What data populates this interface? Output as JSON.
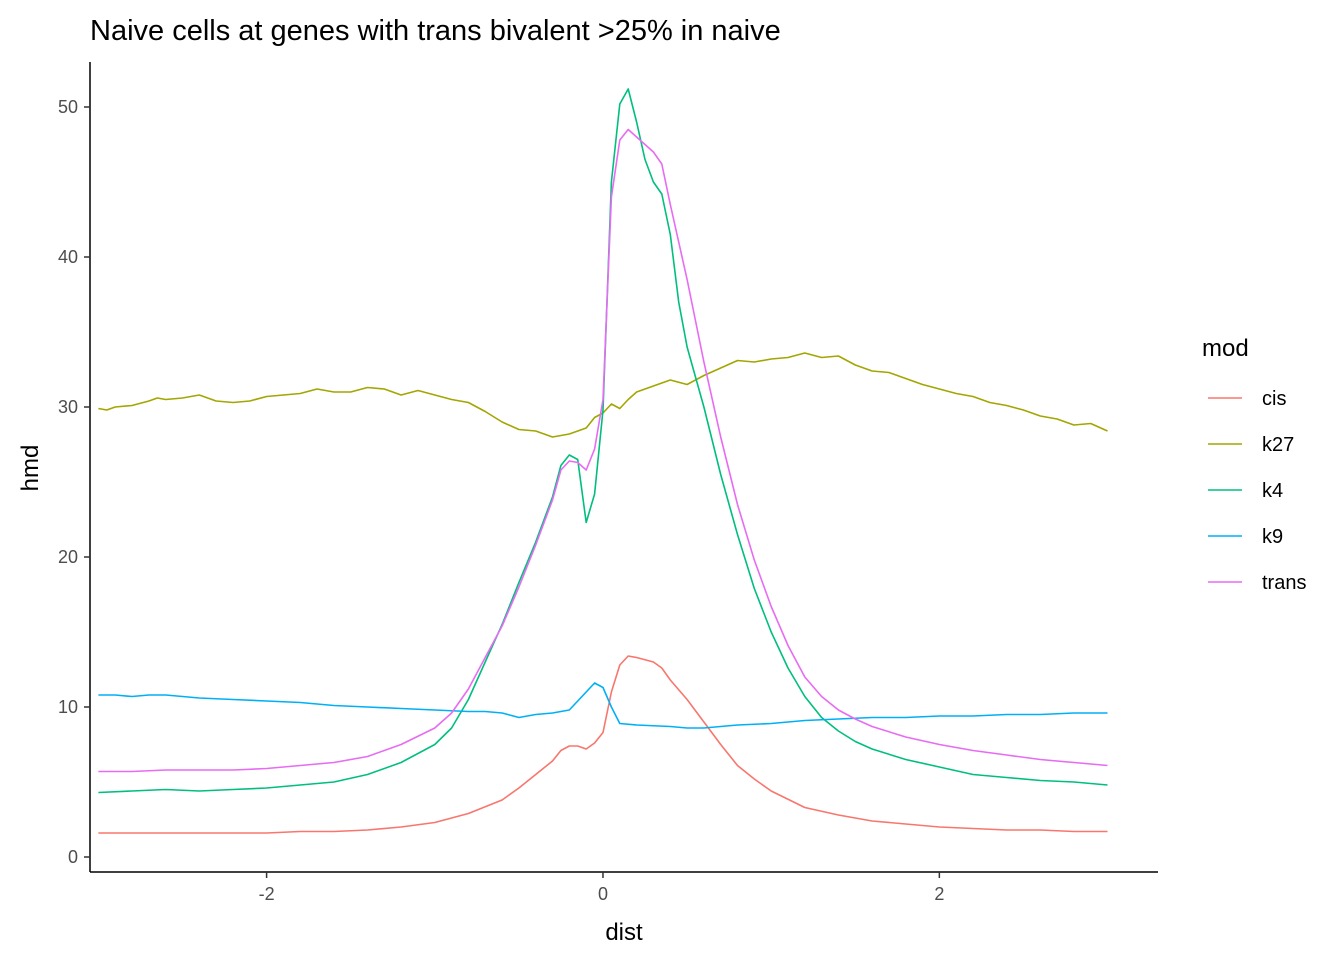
{
  "chart_data": {
    "type": "line",
    "title": "Naive cells at genes with trans bivalent >25% in naive",
    "xlabel": "dist",
    "ylabel": "hmd",
    "xlim": [
      -3.05,
      3.3
    ],
    "ylim": [
      -1,
      53
    ],
    "xticks": [
      -2,
      0,
      2
    ],
    "xtick_labels": [
      "-2",
      "0",
      "2"
    ],
    "yticks": [
      0,
      10,
      20,
      30,
      40,
      50
    ],
    "ytick_labels": [
      "0",
      "10",
      "20",
      "30",
      "40",
      "50"
    ],
    "grid": false,
    "legend": {
      "title": "mod",
      "placement": "right"
    },
    "series": [
      {
        "name": "cis",
        "color": "#F8766D",
        "points": [
          [
            -3.0,
            1.6
          ],
          [
            -2.8,
            1.6
          ],
          [
            -2.6,
            1.6
          ],
          [
            -2.4,
            1.6
          ],
          [
            -2.2,
            1.6
          ],
          [
            -2.0,
            1.6
          ],
          [
            -1.8,
            1.7
          ],
          [
            -1.6,
            1.7
          ],
          [
            -1.4,
            1.8
          ],
          [
            -1.2,
            2.0
          ],
          [
            -1.0,
            2.3
          ],
          [
            -0.8,
            2.9
          ],
          [
            -0.6,
            3.8
          ],
          [
            -0.5,
            4.6
          ],
          [
            -0.4,
            5.5
          ],
          [
            -0.3,
            6.4
          ],
          [
            -0.25,
            7.1
          ],
          [
            -0.2,
            7.4
          ],
          [
            -0.15,
            7.4
          ],
          [
            -0.1,
            7.2
          ],
          [
            -0.05,
            7.6
          ],
          [
            0.0,
            8.3
          ],
          [
            0.05,
            11.0
          ],
          [
            0.1,
            12.8
          ],
          [
            0.15,
            13.4
          ],
          [
            0.2,
            13.3
          ],
          [
            0.3,
            13.0
          ],
          [
            0.35,
            12.6
          ],
          [
            0.4,
            11.8
          ],
          [
            0.5,
            10.5
          ],
          [
            0.6,
            9.0
          ],
          [
            0.7,
            7.5
          ],
          [
            0.8,
            6.1
          ],
          [
            0.9,
            5.2
          ],
          [
            1.0,
            4.4
          ],
          [
            1.2,
            3.3
          ],
          [
            1.4,
            2.8
          ],
          [
            1.6,
            2.4
          ],
          [
            1.8,
            2.2
          ],
          [
            2.0,
            2.0
          ],
          [
            2.2,
            1.9
          ],
          [
            2.4,
            1.8
          ],
          [
            2.6,
            1.8
          ],
          [
            2.8,
            1.7
          ],
          [
            3.0,
            1.7
          ]
        ]
      },
      {
        "name": "k27",
        "color": "#A3A500",
        "points": [
          [
            -3.0,
            29.9
          ],
          [
            -2.95,
            29.8
          ],
          [
            -2.9,
            30.0
          ],
          [
            -2.8,
            30.1
          ],
          [
            -2.7,
            30.4
          ],
          [
            -2.65,
            30.6
          ],
          [
            -2.6,
            30.5
          ],
          [
            -2.5,
            30.6
          ],
          [
            -2.4,
            30.8
          ],
          [
            -2.3,
            30.4
          ],
          [
            -2.2,
            30.3
          ],
          [
            -2.1,
            30.4
          ],
          [
            -2.0,
            30.7
          ],
          [
            -1.9,
            30.8
          ],
          [
            -1.8,
            30.9
          ],
          [
            -1.7,
            31.2
          ],
          [
            -1.6,
            31.0
          ],
          [
            -1.5,
            31.0
          ],
          [
            -1.4,
            31.3
          ],
          [
            -1.3,
            31.2
          ],
          [
            -1.2,
            30.8
          ],
          [
            -1.1,
            31.1
          ],
          [
            -1.0,
            30.8
          ],
          [
            -0.9,
            30.5
          ],
          [
            -0.8,
            30.3
          ],
          [
            -0.7,
            29.7
          ],
          [
            -0.6,
            29.0
          ],
          [
            -0.5,
            28.5
          ],
          [
            -0.4,
            28.4
          ],
          [
            -0.3,
            28.0
          ],
          [
            -0.2,
            28.2
          ],
          [
            -0.1,
            28.6
          ],
          [
            -0.05,
            29.3
          ],
          [
            0.0,
            29.6
          ],
          [
            0.05,
            30.2
          ],
          [
            0.1,
            29.9
          ],
          [
            0.15,
            30.5
          ],
          [
            0.2,
            31.0
          ],
          [
            0.3,
            31.4
          ],
          [
            0.4,
            31.8
          ],
          [
            0.5,
            31.5
          ],
          [
            0.6,
            32.1
          ],
          [
            0.7,
            32.6
          ],
          [
            0.8,
            33.1
          ],
          [
            0.9,
            33.0
          ],
          [
            1.0,
            33.2
          ],
          [
            1.1,
            33.3
          ],
          [
            1.2,
            33.6
          ],
          [
            1.3,
            33.3
          ],
          [
            1.4,
            33.4
          ],
          [
            1.5,
            32.8
          ],
          [
            1.6,
            32.4
          ],
          [
            1.7,
            32.3
          ],
          [
            1.8,
            31.9
          ],
          [
            1.9,
            31.5
          ],
          [
            2.0,
            31.2
          ],
          [
            2.1,
            30.9
          ],
          [
            2.2,
            30.7
          ],
          [
            2.3,
            30.3
          ],
          [
            2.4,
            30.1
          ],
          [
            2.5,
            29.8
          ],
          [
            2.6,
            29.4
          ],
          [
            2.7,
            29.2
          ],
          [
            2.8,
            28.8
          ],
          [
            2.9,
            28.9
          ],
          [
            3.0,
            28.4
          ]
        ]
      },
      {
        "name": "k4",
        "color": "#00BF7D",
        "points": [
          [
            -3.0,
            4.3
          ],
          [
            -2.8,
            4.4
          ],
          [
            -2.6,
            4.5
          ],
          [
            -2.4,
            4.4
          ],
          [
            -2.2,
            4.5
          ],
          [
            -2.0,
            4.6
          ],
          [
            -1.8,
            4.8
          ],
          [
            -1.6,
            5.0
          ],
          [
            -1.4,
            5.5
          ],
          [
            -1.2,
            6.3
          ],
          [
            -1.0,
            7.5
          ],
          [
            -0.9,
            8.6
          ],
          [
            -0.8,
            10.5
          ],
          [
            -0.7,
            13.0
          ],
          [
            -0.6,
            15.5
          ],
          [
            -0.5,
            18.3
          ],
          [
            -0.4,
            21.0
          ],
          [
            -0.3,
            24.0
          ],
          [
            -0.25,
            26.1
          ],
          [
            -0.2,
            26.8
          ],
          [
            -0.15,
            26.5
          ],
          [
            -0.1,
            22.3
          ],
          [
            -0.05,
            24.2
          ],
          [
            0.0,
            29.8
          ],
          [
            0.05,
            45.0
          ],
          [
            0.1,
            50.2
          ],
          [
            0.15,
            51.2
          ],
          [
            0.2,
            49.0
          ],
          [
            0.25,
            46.5
          ],
          [
            0.3,
            45.0
          ],
          [
            0.35,
            44.2
          ],
          [
            0.4,
            41.5
          ],
          [
            0.45,
            37.0
          ],
          [
            0.5,
            34.0
          ],
          [
            0.6,
            30.0
          ],
          [
            0.7,
            25.5
          ],
          [
            0.8,
            21.5
          ],
          [
            0.9,
            17.9
          ],
          [
            1.0,
            15.0
          ],
          [
            1.1,
            12.6
          ],
          [
            1.2,
            10.7
          ],
          [
            1.3,
            9.3
          ],
          [
            1.4,
            8.4
          ],
          [
            1.5,
            7.7
          ],
          [
            1.6,
            7.2
          ],
          [
            1.8,
            6.5
          ],
          [
            2.0,
            6.0
          ],
          [
            2.2,
            5.5
          ],
          [
            2.4,
            5.3
          ],
          [
            2.6,
            5.1
          ],
          [
            2.8,
            5.0
          ],
          [
            3.0,
            4.8
          ]
        ]
      },
      {
        "name": "k9",
        "color": "#00B0F6",
        "points": [
          [
            -3.0,
            10.8
          ],
          [
            -2.9,
            10.8
          ],
          [
            -2.8,
            10.7
          ],
          [
            -2.7,
            10.8
          ],
          [
            -2.6,
            10.8
          ],
          [
            -2.5,
            10.7
          ],
          [
            -2.4,
            10.6
          ],
          [
            -2.2,
            10.5
          ],
          [
            -2.0,
            10.4
          ],
          [
            -1.8,
            10.3
          ],
          [
            -1.6,
            10.1
          ],
          [
            -1.4,
            10.0
          ],
          [
            -1.2,
            9.9
          ],
          [
            -1.0,
            9.8
          ],
          [
            -0.8,
            9.7
          ],
          [
            -0.7,
            9.7
          ],
          [
            -0.6,
            9.6
          ],
          [
            -0.5,
            9.3
          ],
          [
            -0.4,
            9.5
          ],
          [
            -0.3,
            9.6
          ],
          [
            -0.2,
            9.8
          ],
          [
            -0.1,
            11.0
          ],
          [
            -0.05,
            11.6
          ],
          [
            0.0,
            11.3
          ],
          [
            0.05,
            10.0
          ],
          [
            0.1,
            8.9
          ],
          [
            0.2,
            8.8
          ],
          [
            0.4,
            8.7
          ],
          [
            0.5,
            8.6
          ],
          [
            0.6,
            8.6
          ],
          [
            0.7,
            8.7
          ],
          [
            0.8,
            8.8
          ],
          [
            1.0,
            8.9
          ],
          [
            1.2,
            9.1
          ],
          [
            1.4,
            9.2
          ],
          [
            1.6,
            9.3
          ],
          [
            1.8,
            9.3
          ],
          [
            2.0,
            9.4
          ],
          [
            2.2,
            9.4
          ],
          [
            2.4,
            9.5
          ],
          [
            2.6,
            9.5
          ],
          [
            2.8,
            9.6
          ],
          [
            3.0,
            9.6
          ]
        ]
      },
      {
        "name": "trans",
        "color": "#E76BF3",
        "points": [
          [
            -3.0,
            5.7
          ],
          [
            -2.8,
            5.7
          ],
          [
            -2.6,
            5.8
          ],
          [
            -2.4,
            5.8
          ],
          [
            -2.2,
            5.8
          ],
          [
            -2.0,
            5.9
          ],
          [
            -1.8,
            6.1
          ],
          [
            -1.6,
            6.3
          ],
          [
            -1.4,
            6.7
          ],
          [
            -1.2,
            7.5
          ],
          [
            -1.0,
            8.6
          ],
          [
            -0.9,
            9.6
          ],
          [
            -0.8,
            11.2
          ],
          [
            -0.7,
            13.3
          ],
          [
            -0.6,
            15.4
          ],
          [
            -0.5,
            18.0
          ],
          [
            -0.4,
            20.8
          ],
          [
            -0.3,
            23.8
          ],
          [
            -0.25,
            25.8
          ],
          [
            -0.2,
            26.4
          ],
          [
            -0.15,
            26.3
          ],
          [
            -0.1,
            25.8
          ],
          [
            -0.05,
            27.2
          ],
          [
            0.0,
            30.5
          ],
          [
            0.05,
            44.0
          ],
          [
            0.1,
            47.8
          ],
          [
            0.15,
            48.5
          ],
          [
            0.2,
            48.0
          ],
          [
            0.3,
            47.0
          ],
          [
            0.35,
            46.2
          ],
          [
            0.4,
            43.5
          ],
          [
            0.5,
            38.5
          ],
          [
            0.6,
            33.0
          ],
          [
            0.7,
            28.0
          ],
          [
            0.8,
            23.5
          ],
          [
            0.9,
            19.8
          ],
          [
            1.0,
            16.7
          ],
          [
            1.1,
            14.1
          ],
          [
            1.2,
            12.0
          ],
          [
            1.3,
            10.7
          ],
          [
            1.4,
            9.8
          ],
          [
            1.5,
            9.2
          ],
          [
            1.6,
            8.7
          ],
          [
            1.8,
            8.0
          ],
          [
            2.0,
            7.5
          ],
          [
            2.2,
            7.1
          ],
          [
            2.4,
            6.8
          ],
          [
            2.6,
            6.5
          ],
          [
            2.8,
            6.3
          ],
          [
            3.0,
            6.1
          ]
        ]
      }
    ]
  }
}
